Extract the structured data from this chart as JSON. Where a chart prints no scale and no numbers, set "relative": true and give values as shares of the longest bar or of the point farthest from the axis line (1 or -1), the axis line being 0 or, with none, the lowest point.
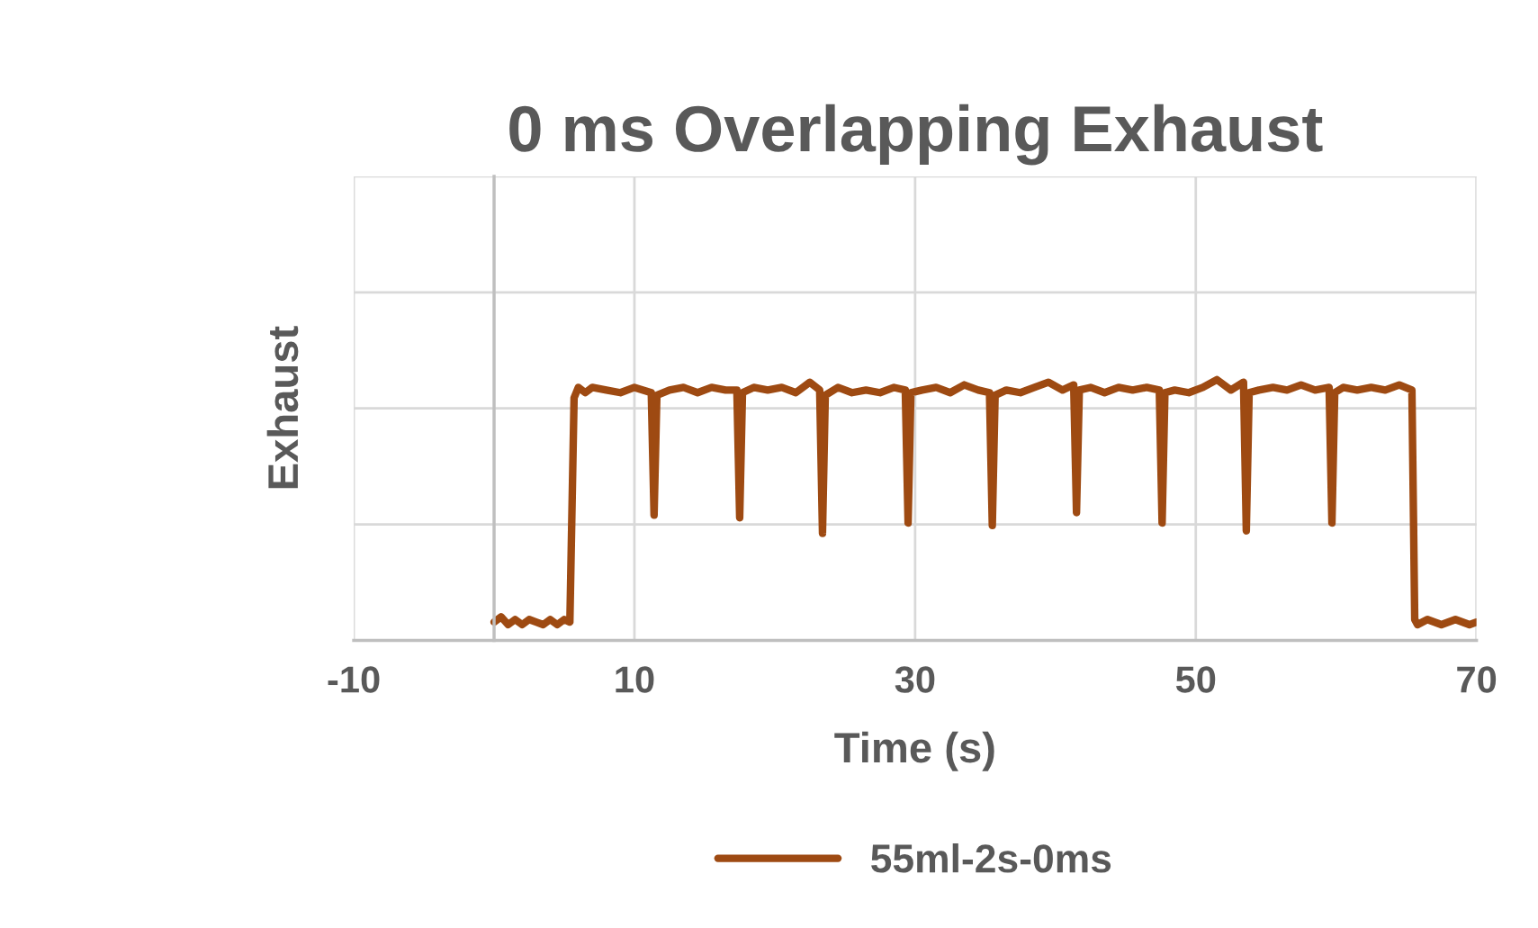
{
  "chart_data": {
    "type": "line",
    "title": "0 ms Overlapping Exhaust",
    "xlabel": "Time (s)",
    "ylabel": "Exhaust",
    "relative": true,
    "xlim": [
      -10,
      70
    ],
    "xticks": [
      -10,
      10,
      30,
      50,
      70
    ],
    "grid": true,
    "legend": "bottom",
    "tick_labels": "x",
    "series": [
      {
        "name": "55ml-2s-0ms",
        "color": "#9e4a12",
        "x": [
          0,
          0.5,
          1,
          1.5,
          2,
          2.5,
          3,
          3.5,
          4,
          4.5,
          5,
          5.4,
          5.7,
          6,
          6.5,
          7,
          8,
          9,
          10,
          11.2,
          11.4,
          11.6,
          12.5,
          13.5,
          14.5,
          15.5,
          16.5,
          17.3,
          17.5,
          17.7,
          18.5,
          19.5,
          20.5,
          21.5,
          22.5,
          23.2,
          23.4,
          23.6,
          24.5,
          25.5,
          26.5,
          27.5,
          28.5,
          29.3,
          29.5,
          29.7,
          30.5,
          31.5,
          32.5,
          33.5,
          34.5,
          35.3,
          35.5,
          35.7,
          36.5,
          37.5,
          38.5,
          39.5,
          40.5,
          41.3,
          41.5,
          41.7,
          42.5,
          43.5,
          44.5,
          45.5,
          46.5,
          47.4,
          47.6,
          47.8,
          48.5,
          49.5,
          50.5,
          51.5,
          52.5,
          53.4,
          53.6,
          53.8,
          54.5,
          55.5,
          56.5,
          57.5,
          58.5,
          59.5,
          59.7,
          59.9,
          60.5,
          61.5,
          62.5,
          63.5,
          64.5,
          65.4,
          65.6,
          65.8,
          66.5,
          67.5,
          68.5,
          69.5,
          70
        ],
        "values": [
          0.07,
          0.09,
          0.06,
          0.08,
          0.06,
          0.08,
          0.07,
          0.06,
          0.08,
          0.06,
          0.08,
          0.07,
          0.93,
          0.97,
          0.95,
          0.97,
          0.96,
          0.95,
          0.97,
          0.95,
          0.48,
          0.94,
          0.96,
          0.97,
          0.95,
          0.97,
          0.96,
          0.96,
          0.47,
          0.95,
          0.97,
          0.96,
          0.97,
          0.95,
          0.99,
          0.96,
          0.41,
          0.94,
          0.97,
          0.95,
          0.96,
          0.95,
          0.97,
          0.96,
          0.45,
          0.95,
          0.96,
          0.97,
          0.95,
          0.98,
          0.96,
          0.95,
          0.44,
          0.94,
          0.96,
          0.95,
          0.97,
          0.99,
          0.96,
          0.98,
          0.49,
          0.96,
          0.97,
          0.95,
          0.97,
          0.96,
          0.97,
          0.96,
          0.45,
          0.95,
          0.96,
          0.95,
          0.97,
          1.0,
          0.96,
          0.99,
          0.42,
          0.95,
          0.96,
          0.97,
          0.96,
          0.98,
          0.96,
          0.97,
          0.45,
          0.95,
          0.97,
          0.96,
          0.97,
          0.96,
          0.98,
          0.96,
          0.08,
          0.06,
          0.08,
          0.06,
          0.08,
          0.06,
          0.07
        ]
      }
    ]
  }
}
